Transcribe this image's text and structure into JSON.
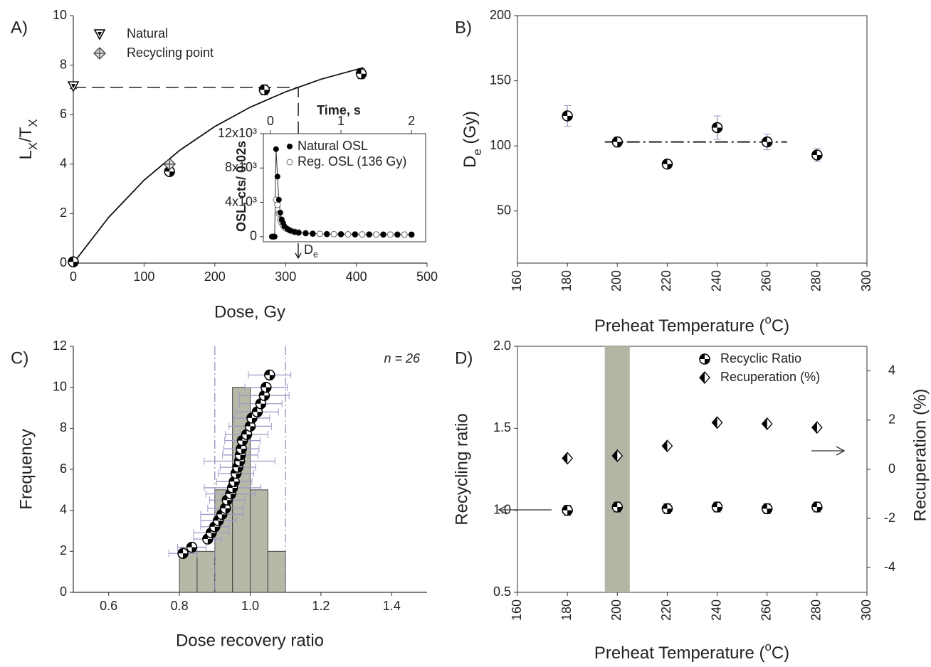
{
  "chart_data": [
    {
      "type": "scatter",
      "panel_label": "A)",
      "xlabel": "Dose, Gy",
      "ylabel": [
        "L",
        "X",
        "/T",
        "X"
      ],
      "xlim": [
        0,
        500
      ],
      "ylim": [
        0,
        10
      ],
      "xticks": [
        0,
        100,
        200,
        300,
        400,
        500
      ],
      "yticks": [
        0,
        2,
        4,
        6,
        8,
        10
      ],
      "error_color": "#222222",
      "series": [
        {
          "name": "Natural",
          "marker": "triangle",
          "x": [
            0
          ],
          "values": [
            7.15
          ],
          "errors": [
            0.1
          ]
        },
        {
          "name": "Recycling point",
          "marker": "cross-diamond",
          "x": [
            136
          ],
          "values": [
            4.0
          ],
          "errors": [
            0.1
          ]
        },
        {
          "marker": "half",
          "x": [
            0,
            136,
            270,
            407
          ],
          "values": [
            0.05,
            3.7,
            7.0,
            7.65
          ],
          "errors": [
            0.05,
            0.1,
            0.2,
            0.2
          ]
        }
      ],
      "fit": {
        "x": [
          0,
          50,
          100,
          150,
          200,
          250,
          300,
          350,
          410
        ],
        "y": [
          0,
          1.85,
          3.35,
          4.55,
          5.52,
          6.3,
          6.92,
          7.43,
          7.9
        ]
      },
      "de_line": {
        "x": 318,
        "y": 7.1
      }
    },
    {
      "type": "scatter",
      "xlabel": "Time, s",
      "ylabel": "OSL, cts/ 0.02s",
      "annotation": [
        "D",
        "e"
      ],
      "xlim": [
        -0.1,
        2.2
      ],
      "ylim": [
        -600,
        12000
      ],
      "xticks": [
        0,
        1,
        2
      ],
      "yticks": [
        0,
        {
          "value": 4000,
          "label": "4x10³"
        },
        {
          "value": 8000,
          "label": "8x10³"
        },
        {
          "value": 12000,
          "label": "12x10³"
        }
      ],
      "series": [
        {
          "name": "Natural OSL",
          "marker": "dot",
          "x": [
            0.02,
            0.06,
            0.08,
            0.1,
            0.12,
            0.14,
            0.16,
            0.18,
            0.2,
            0.24,
            0.28,
            0.34,
            0.4,
            0.5,
            0.6,
            0.8,
            1.0,
            1.2,
            1.4,
            1.6,
            1.8,
            2.0
          ],
          "values": [
            0,
            0,
            10200,
            7000,
            4300,
            2800,
            2000,
            1600,
            1200,
            900,
            700,
            550,
            450,
            380,
            330,
            300,
            280,
            270,
            260,
            250,
            250,
            250
          ]
        },
        {
          "name": "Reg. OSL (136 Gy)",
          "marker": "open",
          "x": [
            0.04,
            0.08,
            0.1,
            0.12,
            0.14,
            0.16,
            0.18,
            0.2,
            0.22,
            0.26,
            0.3,
            0.35,
            0.4,
            0.5,
            0.6,
            0.7,
            0.8,
            0.9,
            1.0,
            1.1,
            1.2,
            1.3,
            1.4,
            1.5,
            1.6,
            1.7,
            1.8,
            1.9,
            2.0
          ],
          "values": [
            0,
            4300,
            3700,
            2700,
            2000,
            1600,
            1300,
            1100,
            950,
            800,
            650,
            550,
            480,
            400,
            350,
            320,
            300,
            290,
            280,
            270,
            260,
            255,
            250,
            245,
            240,
            240,
            235,
            235,
            230
          ]
        }
      ]
    },
    {
      "type": "scatter",
      "panel_label": "B)",
      "xlabel": [
        "Preheat Temperature (",
        "o",
        "C)"
      ],
      "ylabel": [
        "D",
        "e",
        " (Gy)"
      ],
      "xlim": [
        160,
        300
      ],
      "ylim": [
        10,
        200
      ],
      "xticks": [
        160,
        180,
        200,
        220,
        240,
        260,
        280,
        300
      ],
      "yticks": [
        50,
        100,
        150,
        200
      ],
      "error_color": "#9a9ac8",
      "series": [
        {
          "marker": "half",
          "x": [
            180,
            200,
            220,
            240,
            260,
            280
          ],
          "values": [
            123,
            103,
            86,
            114,
            103,
            93
          ],
          "errors": [
            8,
            4,
            3,
            9,
            6,
            5
          ]
        }
      ],
      "reference_line": {
        "x": [
          195,
          268
        ],
        "y": 103
      }
    },
    {
      "type": "histogram",
      "panel_label": "C)",
      "xlabel": "Dose recovery ratio",
      "ylabel": "Frequency",
      "annotation": "n = 26",
      "xlim": [
        0.5,
        1.5
      ],
      "ylim": [
        0,
        12
      ],
      "xticks": [
        0.6,
        0.8,
        {
          "value": 1,
          "label": "1.0"
        },
        1.2,
        1.4
      ],
      "yticks": [
        0,
        2,
        4,
        6,
        8,
        10,
        12
      ],
      "bins": [
        0.8,
        0.85,
        0.9,
        0.95,
        1.0,
        1.05,
        1.1
      ],
      "counts": [
        2,
        2,
        5,
        10,
        5,
        2
      ],
      "color": "#b8b8a8",
      "error_color": "#9a9ac8",
      "ref_lines": [
        0.9,
        1.1
      ],
      "points": {
        "x": [
          0.81,
          0.835,
          0.88,
          0.89,
          0.9,
          0.91,
          0.92,
          0.93,
          0.935,
          0.945,
          0.95,
          0.955,
          0.96,
          0.965,
          0.97,
          0.972,
          0.975,
          0.978,
          0.99,
          1.0,
          1.005,
          1.02,
          1.03,
          1.04,
          1.045,
          1.055
        ],
        "y": [
          1.9,
          2.2,
          2.6,
          2.9,
          3.2,
          3.5,
          3.8,
          4.1,
          4.5,
          4.8,
          5.1,
          5.4,
          5.8,
          6.1,
          6.4,
          6.7,
          7.0,
          7.4,
          7.7,
          8.1,
          8.5,
          8.8,
          9.2,
          9.6,
          10.0,
          10.6
        ],
        "errors": [
          0.04,
          0.04,
          0.04,
          0.05,
          0.04,
          0.05,
          0.06,
          0.05,
          0.05,
          0.07,
          0.08,
          0.05,
          0.05,
          0.05,
          0.1,
          0.05,
          0.05,
          0.05,
          0.06,
          0.06,
          0.05,
          0.06,
          0.06,
          0.07,
          0.06,
          0.06
        ]
      }
    },
    {
      "type": "scatter",
      "panel_label": "D)",
      "xlabel": [
        "Preheat Temperature (",
        "o",
        "C)"
      ],
      "ylabel": "Recycling ratio",
      "y2label": "Recuperation (%)",
      "xlim": [
        160,
        300
      ],
      "ylim": [
        0.5,
        2.0
      ],
      "y2lim": [
        -5,
        5
      ],
      "xticks": [
        160,
        180,
        200,
        220,
        240,
        260,
        280,
        300
      ],
      "yticks": [
        0.5,
        {
          "value": 1,
          "label": "1.0"
        },
        1.5,
        {
          "value": 2,
          "label": "2.0"
        }
      ],
      "y2ticks": [
        -4,
        -2,
        0,
        2,
        4
      ],
      "highlight": [
        195,
        205
      ],
      "highlight_color": "#b5b5a5",
      "error_color": "#222222",
      "series": [
        {
          "name": "Recyclic Ratio",
          "marker": "half",
          "x": [
            180,
            200,
            220,
            240,
            260,
            280
          ],
          "values": [
            1.0,
            1.02,
            1.01,
            1.02,
            1.01,
            1.02
          ],
          "errors": [
            0.03,
            0.03,
            0.03,
            0.03,
            0.03,
            0.03
          ]
        },
        {
          "name": "Recuperation (%)",
          "marker": "diamond-half",
          "axis": "y2",
          "x": [
            180,
            200,
            220,
            240,
            260,
            280
          ],
          "values": [
            0.45,
            0.55,
            0.95,
            1.9,
            1.85,
            1.7
          ]
        }
      ]
    }
  ]
}
